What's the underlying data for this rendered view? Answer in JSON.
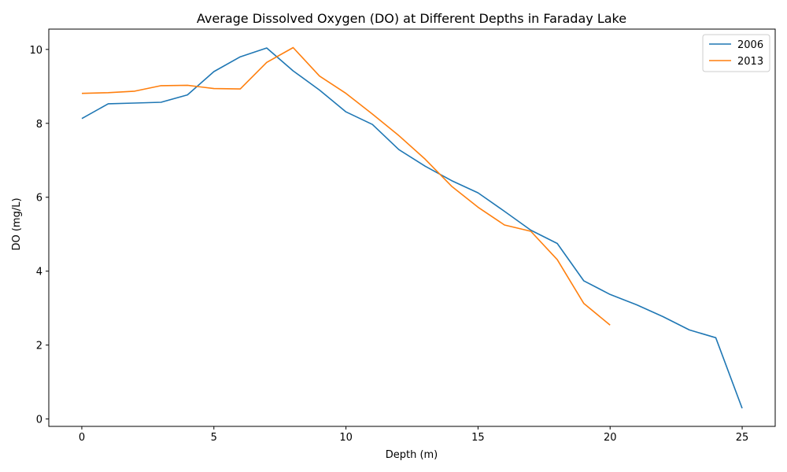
{
  "chart_data": {
    "type": "line",
    "title": "Average Dissolved Oxygen (DO) at Different Depths in Faraday Lake",
    "xlabel": "Depth (m)",
    "ylabel": "DO (mg/L)",
    "xlim": [
      -1.25,
      26.25
    ],
    "ylim": [
      -0.2,
      10.55
    ],
    "xticks": [
      0,
      5,
      10,
      15,
      20,
      25
    ],
    "yticks": [
      0,
      2,
      4,
      6,
      8,
      10
    ],
    "grid": false,
    "legend_position": "top-right",
    "series": [
      {
        "name": "2006",
        "color": "#1f77b4",
        "x": [
          0,
          1,
          2,
          3,
          4,
          5,
          6,
          7,
          8,
          9,
          10,
          11,
          12,
          13,
          14,
          15,
          16,
          17,
          18,
          19,
          20,
          21,
          22,
          23,
          24,
          25
        ],
        "y": [
          8.13,
          8.53,
          8.55,
          8.57,
          8.77,
          9.4,
          9.8,
          10.04,
          9.42,
          8.9,
          8.31,
          7.97,
          7.29,
          6.84,
          6.45,
          6.12,
          5.62,
          5.11,
          4.75,
          3.74,
          3.37,
          3.09,
          2.77,
          2.41,
          2.2,
          0.29
        ]
      },
      {
        "name": "2013",
        "color": "#ff7f0e",
        "x": [
          0,
          1,
          2,
          3,
          4,
          5,
          6,
          7,
          8,
          9,
          10,
          11,
          12,
          13,
          14,
          15,
          16,
          17,
          18,
          19,
          20
        ],
        "y": [
          8.81,
          8.83,
          8.87,
          9.02,
          9.03,
          8.94,
          8.93,
          9.65,
          10.05,
          9.28,
          8.81,
          8.25,
          7.67,
          7.03,
          6.3,
          5.73,
          5.25,
          5.08,
          4.31,
          3.13,
          2.54
        ]
      }
    ]
  }
}
